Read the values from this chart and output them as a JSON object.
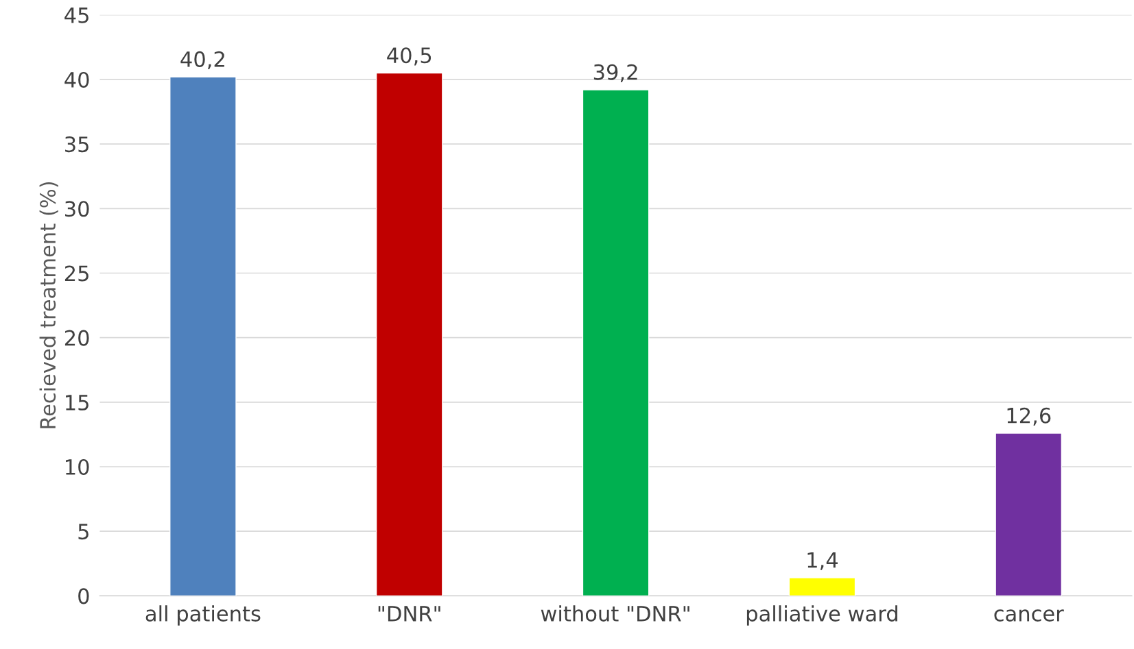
{
  "chart_data": {
    "type": "bar",
    "ylabel": "Recieved treatment (%)",
    "categories": [
      "all patients",
      "\"DNR\"",
      "without \"DNR\"",
      "palliative ward",
      "cancer"
    ],
    "values": [
      40.2,
      40.5,
      39.2,
      1.4,
      12.6
    ],
    "value_labels": [
      "40,2",
      "40,5",
      "39,2",
      "1,4",
      "12,6"
    ],
    "colors": [
      "#4f81bd",
      "#c00000",
      "#00b050",
      "#ffff00",
      "#7030a0"
    ],
    "ylim": [
      0,
      45
    ],
    "yticks": [
      0,
      5,
      10,
      15,
      20,
      25,
      30,
      35,
      40,
      45
    ],
    "grid": "y",
    "legend": false
  }
}
